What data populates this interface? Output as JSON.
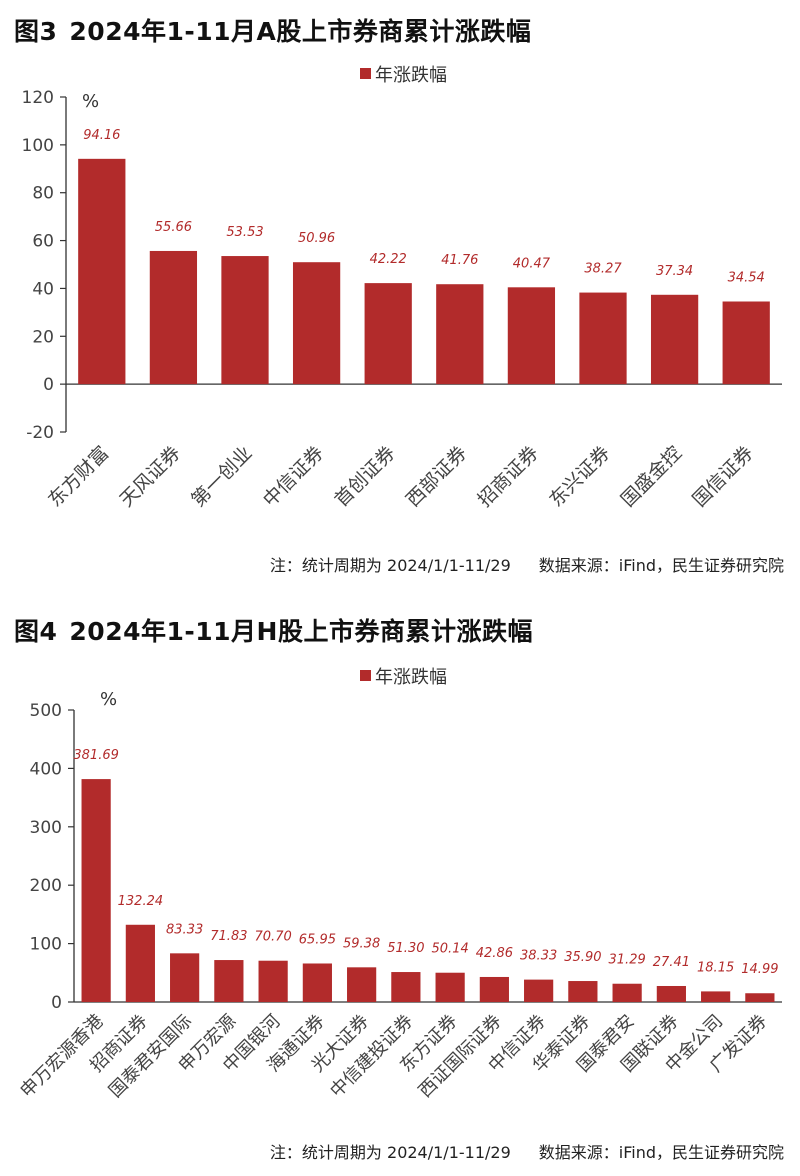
{
  "figures": [
    {
      "fig_no": "图3",
      "title": "2024年1-11月A股上市券商累计涨跌幅",
      "note_period": "注：统计周期为 2024/1/1-11/29",
      "note_source": "数据来源：iFind，民生证券研究院",
      "colors": {
        "bar": "#b22b2b",
        "label": "#b22b2b",
        "axis": "#333333"
      }
    },
    {
      "fig_no": "图4",
      "title": "2024年1-11月H股上市券商累计涨跌幅",
      "note_period": "注：统计周期为 2024/1/1-11/29",
      "note_source": "数据来源：iFind，民生证券研究院",
      "colors": {
        "bar": "#b22b2b",
        "label": "#b22b2b",
        "axis": "#333333"
      }
    }
  ],
  "chart_data": [
    {
      "type": "bar",
      "title": "2024年1-11月A股上市券商累计涨跌幅",
      "unit_label": "%",
      "legend": [
        "年涨跌幅"
      ],
      "legend_position": "top-center",
      "categories": [
        "东方财富",
        "天风证券",
        "第一创业",
        "中信证券",
        "首创证券",
        "西部证券",
        "招商证券",
        "东兴证券",
        "国盛金控",
        "国信证券"
      ],
      "series": [
        {
          "name": "年涨跌幅",
          "values": [
            94.16,
            55.66,
            53.53,
            50.96,
            42.22,
            41.76,
            40.47,
            38.27,
            37.34,
            34.54
          ]
        }
      ],
      "data_labels": [
        "94.16",
        "55.66",
        "53.53",
        "50.96",
        "42.22",
        "41.76",
        "40.47",
        "38.27",
        "37.34",
        "34.54"
      ],
      "ylim": [
        -20,
        120
      ],
      "yticks": [
        -20,
        0,
        20,
        40,
        60,
        80,
        100,
        120
      ],
      "ytick_labels": [
        "-20",
        "0",
        "20",
        "40",
        "60",
        "80",
        "100",
        "120"
      ],
      "grid": false
    },
    {
      "type": "bar",
      "title": "2024年1-11月H股上市券商累计涨跌幅",
      "unit_label": "%",
      "legend": [
        "年涨跌幅"
      ],
      "legend_position": "top-center",
      "categories": [
        "申万宏源香港",
        "招商证券",
        "国泰君安国际",
        "申万宏源",
        "中国银河",
        "海通证券",
        "光大证券",
        "中信建投证券",
        "东方证券",
        "西证国际证券",
        "中信证券",
        "华泰证券",
        "国泰君安",
        "国联证券",
        "中金公司",
        "广发证券"
      ],
      "series": [
        {
          "name": "年涨跌幅",
          "values": [
            381.69,
            132.24,
            83.33,
            71.83,
            70.7,
            65.95,
            59.38,
            51.3,
            50.14,
            42.86,
            38.33,
            35.9,
            31.29,
            27.41,
            18.15,
            14.99
          ]
        }
      ],
      "data_labels": [
        "381.69",
        "132.24",
        "83.33",
        "71.83",
        "70.70",
        "65.95",
        "59.38",
        "51.30",
        "50.14",
        "42.86",
        "38.33",
        "35.90",
        "31.29",
        "27.41",
        "18.15",
        "14.99"
      ],
      "ylim": [
        0,
        500
      ],
      "yticks": [
        0,
        100,
        200,
        300,
        400,
        500
      ],
      "ytick_labels": [
        "0",
        "100",
        "200",
        "300",
        "400",
        "500"
      ],
      "grid": false
    }
  ]
}
